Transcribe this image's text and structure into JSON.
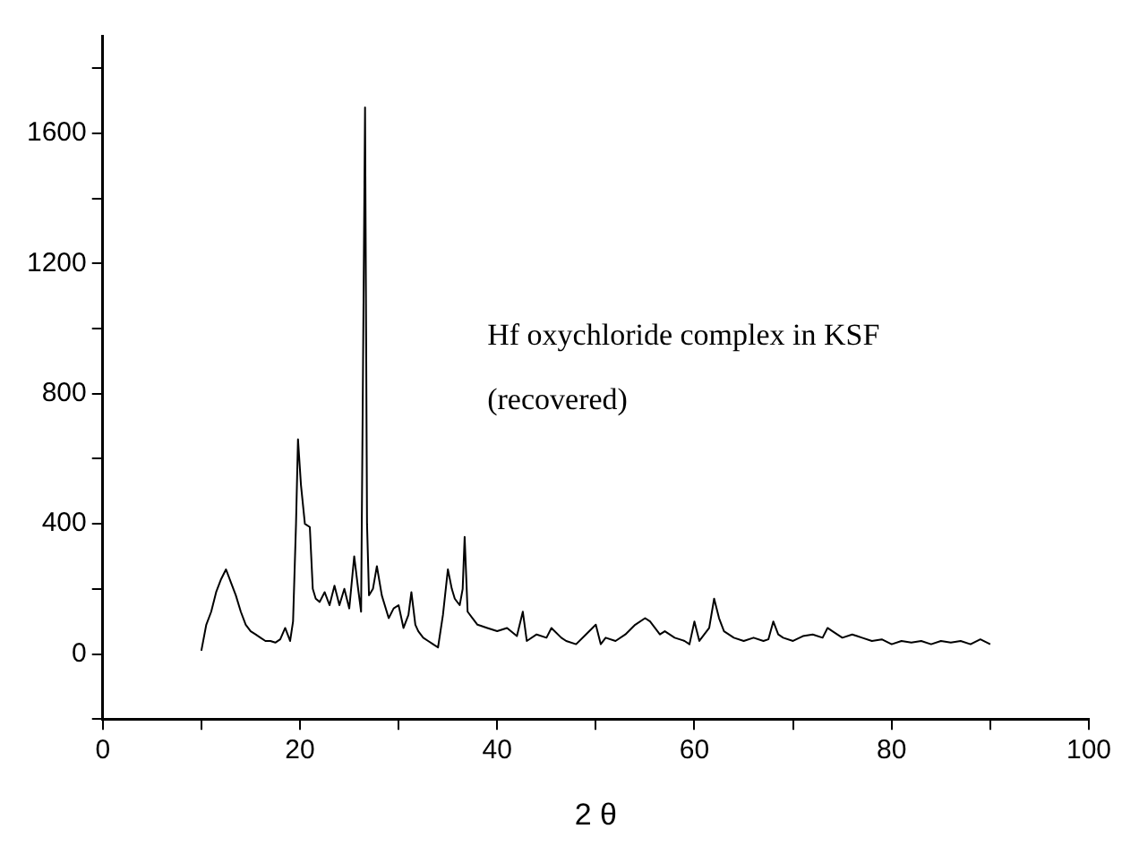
{
  "chart_data": {
    "type": "line",
    "xlabel": "2 θ",
    "annotations": [
      "Hf oxychloride complex in KSF",
      "(recovered)"
    ],
    "x": [
      10,
      10.5,
      11,
      11.5,
      12,
      12.5,
      13,
      13.5,
      14,
      14.5,
      15,
      15.5,
      16,
      16.5,
      17,
      17.5,
      18,
      18.5,
      19,
      19.3,
      19.6,
      19.8,
      20.1,
      20.5,
      21,
      21.3,
      21.6,
      22,
      22.5,
      23,
      23.5,
      24,
      24.5,
      25,
      25.5,
      25.9,
      26.2,
      26.4,
      26.6,
      26.8,
      27,
      27.4,
      27.8,
      28.3,
      29,
      29.5,
      30,
      30.5,
      31,
      31.3,
      31.7,
      32,
      32.5,
      33,
      33.5,
      34,
      34.5,
      35,
      35.4,
      35.7,
      36.2,
      36.5,
      36.7,
      37,
      37.5,
      38,
      39,
      40,
      41,
      42,
      42.6,
      43,
      44,
      45,
      45.5,
      46.5,
      47,
      48,
      49,
      50,
      50.5,
      51,
      52,
      53,
      54,
      55,
      55.5,
      56.5,
      57,
      58,
      59,
      59.5,
      60,
      60.5,
      61,
      61.5,
      62,
      62.5,
      63,
      64,
      65,
      66,
      67,
      67.5,
      68,
      68.5,
      69,
      70,
      71,
      72,
      73,
      73.5,
      74,
      75,
      76,
      76.5,
      77,
      78,
      79,
      80,
      81,
      82,
      83,
      84,
      85,
      86,
      87,
      88,
      89,
      90
    ],
    "series": [
      {
        "color": "#000000",
        "values": [
          10,
          90,
          130,
          190,
          230,
          260,
          220,
          180,
          130,
          90,
          70,
          60,
          50,
          40,
          40,
          35,
          45,
          80,
          40,
          100,
          400,
          660,
          520,
          400,
          390,
          200,
          170,
          160,
          190,
          150,
          210,
          150,
          200,
          140,
          300,
          200,
          130,
          900,
          1680,
          400,
          180,
          200,
          270,
          180,
          110,
          140,
          150,
          80,
          120,
          190,
          90,
          70,
          50,
          40,
          30,
          20,
          120,
          260,
          200,
          170,
          150,
          200,
          360,
          130,
          110,
          90,
          80,
          70,
          80,
          55,
          130,
          40,
          60,
          50,
          80,
          50,
          40,
          30,
          60,
          90,
          30,
          50,
          40,
          60,
          90,
          110,
          100,
          60,
          70,
          50,
          40,
          30,
          100,
          40,
          60,
          80,
          170,
          110,
          70,
          50,
          40,
          50,
          40,
          45,
          100,
          60,
          50,
          40,
          55,
          60,
          50,
          80,
          70,
          50,
          60,
          55,
          50,
          40,
          45,
          30,
          40,
          35,
          40,
          30,
          40,
          35,
          40,
          30,
          45,
          30
        ]
      }
    ],
    "xlim": [
      0,
      100
    ],
    "xticks": [
      0,
      {
        "value": 10,
        "label": null
      },
      20,
      {
        "value": 30,
        "label": null
      },
      40,
      {
        "value": 50,
        "label": null
      },
      60,
      {
        "value": 70,
        "label": null
      },
      80,
      {
        "value": 90,
        "label": null
      },
      100
    ],
    "ylim": [
      -200,
      1900
    ],
    "yticks": [
      {
        "value": -200,
        "label": null
      },
      0,
      {
        "value": 200,
        "label": null
      },
      400,
      {
        "value": 600,
        "label": null
      },
      800,
      {
        "value": 1000,
        "label": null
      },
      1200,
      {
        "value": 1400,
        "label": null
      },
      1600,
      {
        "value": 1800,
        "label": null
      }
    ],
    "grid": false,
    "legend": false,
    "marker": "none",
    "line_style": "solid"
  }
}
